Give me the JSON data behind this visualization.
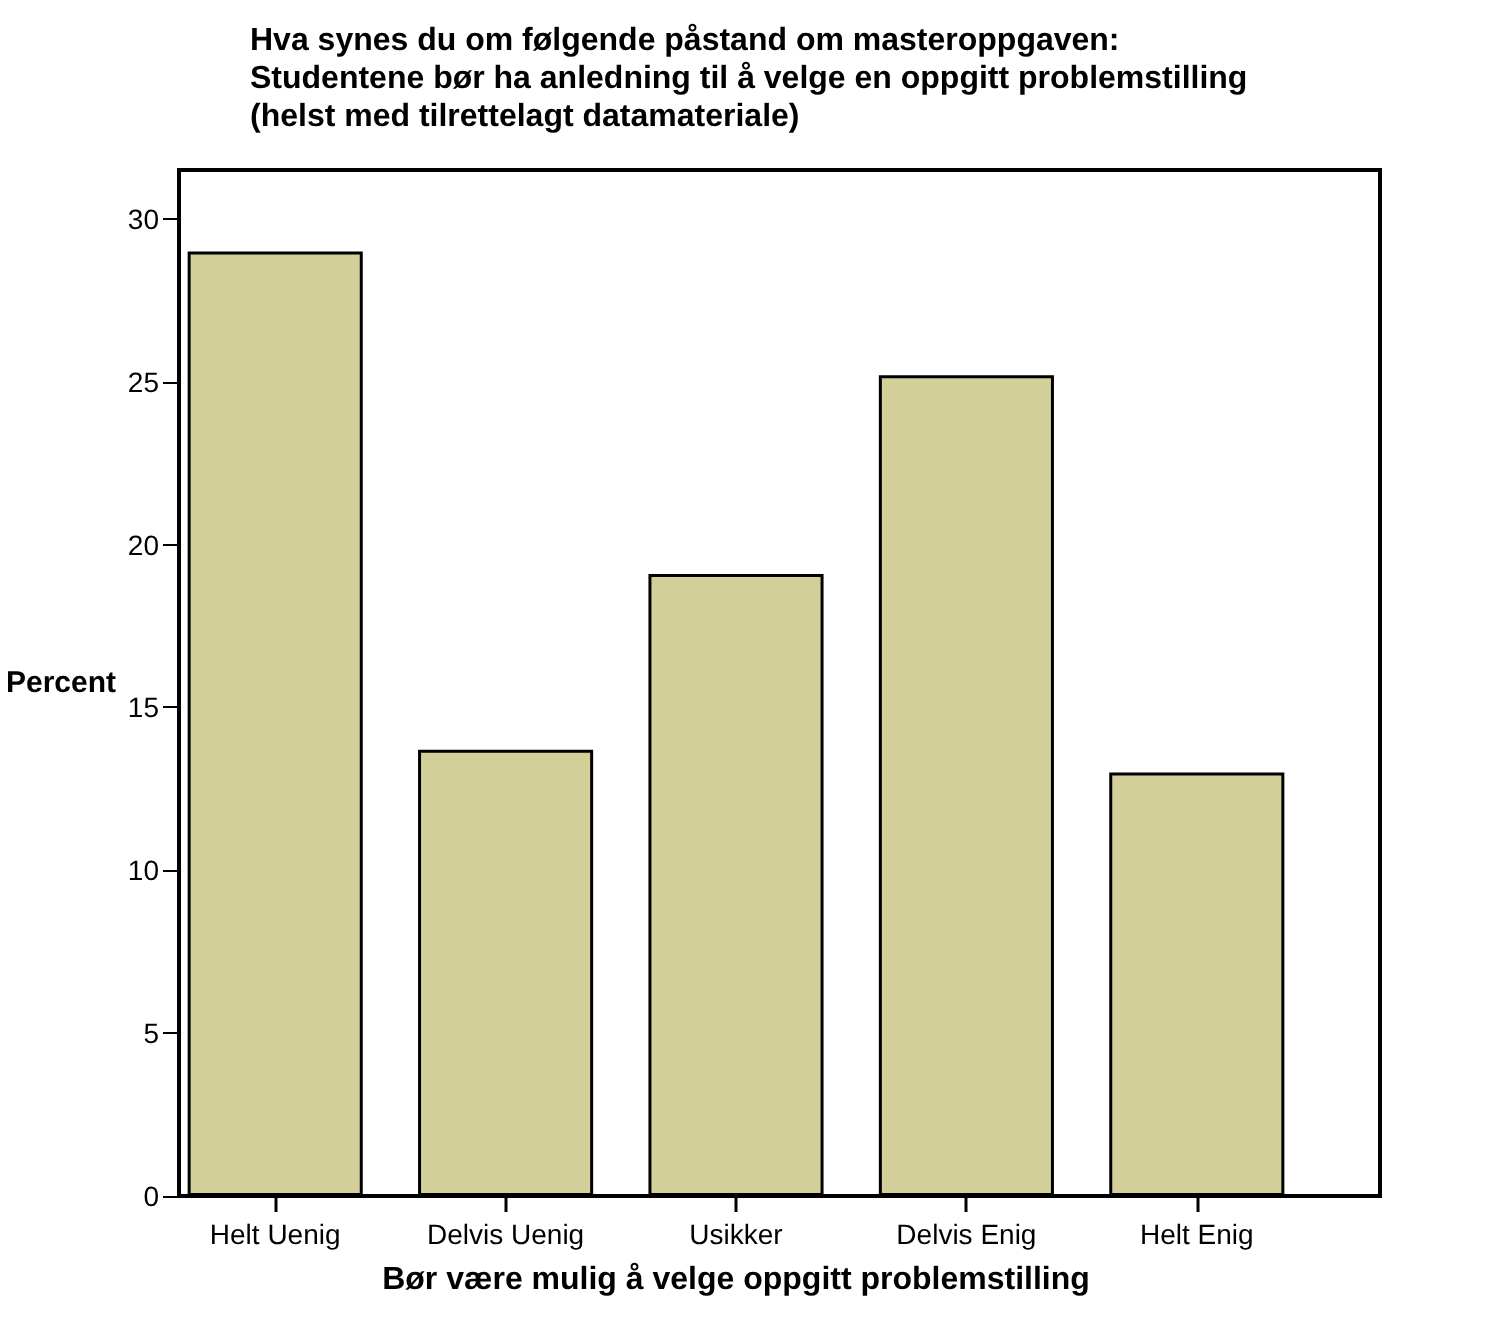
{
  "chart_data": {
    "type": "bar",
    "title": "Hva synes du om følgende påstand om masteroppgaven:\nStudentene bør ha anledning til å velge en oppgitt problemstilling\n(helst med tilrettelagt datamateriale)",
    "xlabel": "Bør være mulig å velge oppgitt problemstilling",
    "ylabel": "Percent",
    "categories": [
      "Helt Uenig",
      "Delvis Uenig",
      "Usikker",
      "Delvis Enig",
      "Helt Enig"
    ],
    "values": [
      29.0,
      13.7,
      19.1,
      25.2,
      13.0
    ],
    "color": "#d3cf98",
    "ylim": [
      0,
      31.5
    ],
    "yticks": [
      0,
      5,
      10,
      15,
      20,
      25,
      30
    ],
    "grid": false
  }
}
